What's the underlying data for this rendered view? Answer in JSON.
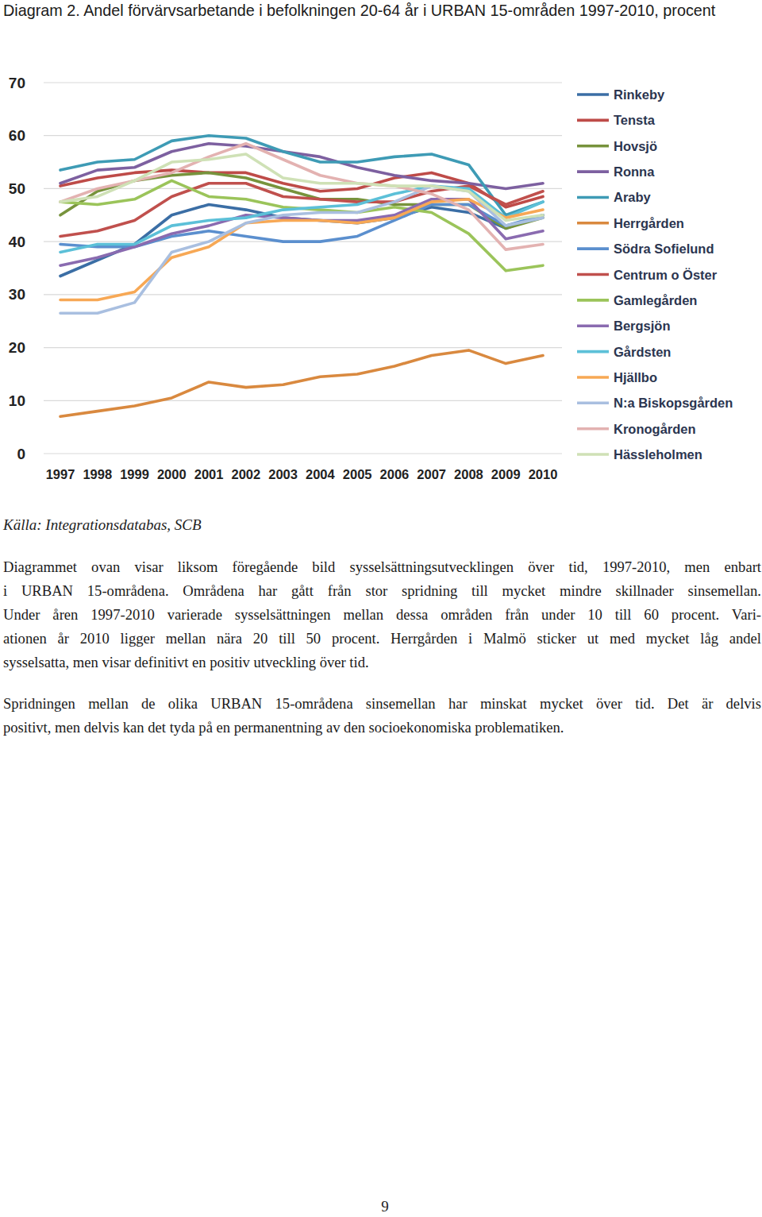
{
  "chart_data": {
    "type": "line",
    "title": "Diagram 2. Andel förvärvsarbetande i befolkningen 20-64 år i URBAN 15-områden 1997-2010, procent",
    "categories": [
      "1997",
      "1998",
      "1999",
      "2000",
      "2001",
      "2002",
      "2003",
      "2004",
      "2005",
      "2006",
      "2007",
      "2008",
      "2009",
      "2010"
    ],
    "ylim": [
      0,
      70
    ],
    "yticks": [
      0,
      10,
      20,
      30,
      40,
      50,
      60,
      70
    ],
    "grid": true,
    "legend": "right",
    "series": [
      {
        "name": "Rinkeby",
        "color": "#3b6ea5",
        "values": [
          33.5,
          36.5,
          39.5,
          45,
          47,
          46,
          44.5,
          44,
          43.5,
          44.5,
          46.5,
          45.5,
          42.5,
          45
        ]
      },
      {
        "name": "Tensta",
        "color": "#be4b48",
        "values": [
          50.5,
          52,
          53,
          53.5,
          53,
          53,
          51,
          49.5,
          50,
          52,
          53,
          51,
          46.5,
          48.5
        ]
      },
      {
        "name": "Hovsjö",
        "color": "#77933c",
        "values": [
          45,
          49.5,
          51.5,
          52.5,
          53,
          52,
          50,
          48,
          48,
          47,
          47,
          47,
          42.5,
          44.5
        ]
      },
      {
        "name": "Ronna",
        "color": "#7d60a0",
        "values": [
          51,
          53.5,
          54,
          57,
          58.5,
          58,
          57,
          56,
          54,
          52.5,
          51.5,
          51,
          50,
          51
        ]
      },
      {
        "name": "Araby",
        "color": "#3e9bb5",
        "values": [
          53.5,
          55,
          55.5,
          59,
          60,
          59.5,
          57,
          55,
          55,
          56,
          56.5,
          54.5,
          45,
          47.5
        ]
      },
      {
        "name": "Herrgården",
        "color": "#d9893f",
        "values": [
          7,
          8,
          9,
          10.5,
          13.5,
          12.5,
          13,
          14.5,
          15,
          16.5,
          18.5,
          19.5,
          17,
          18.5
        ]
      },
      {
        "name": "Södra Sofielund",
        "color": "#5b8fce",
        "values": [
          39.5,
          39,
          39,
          41,
          42,
          41,
          40,
          40,
          41,
          44,
          47,
          47,
          43,
          45
        ]
      },
      {
        "name": "Centrum o Öster",
        "color": "#c0504d",
        "values": [
          41,
          42,
          44,
          48.5,
          51,
          51,
          48.5,
          48,
          47.5,
          47.5,
          49.5,
          50.5,
          47,
          49.5
        ]
      },
      {
        "name": "Gamlegården",
        "color": "#9bc45a",
        "values": [
          47.5,
          47,
          48,
          51.5,
          48.5,
          48,
          46.5,
          46,
          45.5,
          46.5,
          45.5,
          41.5,
          34.5,
          35.5
        ]
      },
      {
        "name": "Bergsjön",
        "color": "#8a6bb0",
        "values": [
          35.5,
          37,
          39,
          41.5,
          43,
          45,
          44.5,
          44,
          44,
          45,
          48,
          48,
          40.5,
          42
        ]
      },
      {
        "name": "Gårdsten",
        "color": "#5cc0d8",
        "values": [
          38,
          39.5,
          39.5,
          43,
          44,
          44.5,
          46,
          46.5,
          47,
          49,
          50.5,
          50,
          44.5,
          47.5
        ]
      },
      {
        "name": "Hjällbo",
        "color": "#f7a855",
        "values": [
          29,
          29,
          30.5,
          37,
          39,
          43.5,
          44,
          44,
          43.5,
          44.5,
          47.5,
          48,
          44.5,
          46
        ]
      },
      {
        "name": "N:a Biskopsgården",
        "color": "#a9bfe0",
        "values": [
          26.5,
          26.5,
          28.5,
          38,
          40,
          43.5,
          45,
          45.5,
          45.5,
          47.5,
          50.5,
          49.5,
          43,
          44.5
        ]
      },
      {
        "name": "Kronogården",
        "color": "#e3b2b1",
        "values": [
          47.5,
          50,
          51.5,
          53,
          56,
          58.5,
          55.5,
          52.5,
          51,
          50.5,
          49,
          46,
          38.5,
          39.5
        ]
      },
      {
        "name": "Hässleholmen",
        "color": "#cfe1b6",
        "values": [
          47.5,
          48.5,
          51.5,
          55,
          55.5,
          56.5,
          52,
          51,
          51,
          50.5,
          50.5,
          49.5,
          44,
          45
        ]
      }
    ]
  },
  "source": "Källa: Integrationsdatabas, SCB",
  "paragraphs": [
    [
      "Diagrammet ovan visar liksom föregående bild sysselsättningsutvecklingen över tid, 1997-2010, men enbart",
      "i URBAN 15-områdena. Områdena har gått från stor spridning till mycket mindre skillnader sinsemellan.",
      "Under åren 1997-2010 varierade sysselsättningen mellan dessa områden från under 10 till 60 procent. Vari-",
      "ationen år 2010 ligger mellan nära 20 till 50 procent. Herrgården i Malmö sticker ut med mycket låg andel",
      "sysselsatta, men visar definitivt en positiv utveckling över tid."
    ],
    [
      "Spridningen mellan de olika URBAN 15-områdena sinsemellan har minskat mycket över tid. Det är delvis",
      "positivt, men delvis kan det tyda på en permanentning av den socioekonomiska problematiken."
    ]
  ],
  "page_number": 9
}
